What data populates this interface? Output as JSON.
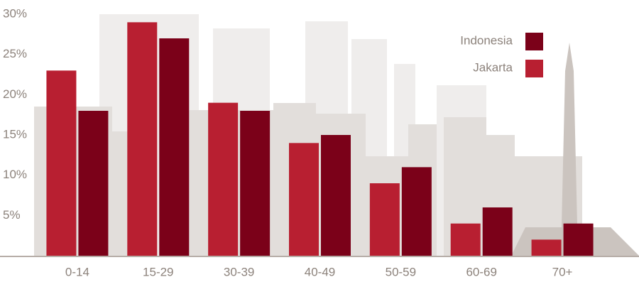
{
  "chart_data": {
    "type": "bar",
    "categories": [
      "0-14",
      "15-29",
      "30-39",
      "40-49",
      "50-59",
      "60-69",
      "70+"
    ],
    "series": [
      {
        "name": "Jakarta",
        "color": "#b81f31",
        "values": [
          23,
          29,
          19,
          14,
          9,
          4,
          2
        ]
      },
      {
        "name": "Indonesia",
        "color": "#7b0119",
        "values": [
          18,
          27,
          18,
          15,
          11,
          6,
          4
        ]
      }
    ],
    "ylim": [
      0,
      30
    ],
    "yticks": [
      {
        "value": 5,
        "label": "5%"
      },
      {
        "value": 10,
        "label": "10%"
      },
      {
        "value": 15,
        "label": "15%"
      },
      {
        "value": 20,
        "label": "20%"
      },
      {
        "value": 25,
        "label": "25%"
      },
      {
        "value": 30,
        "label": "30%"
      }
    ],
    "legend": "top-right"
  }
}
